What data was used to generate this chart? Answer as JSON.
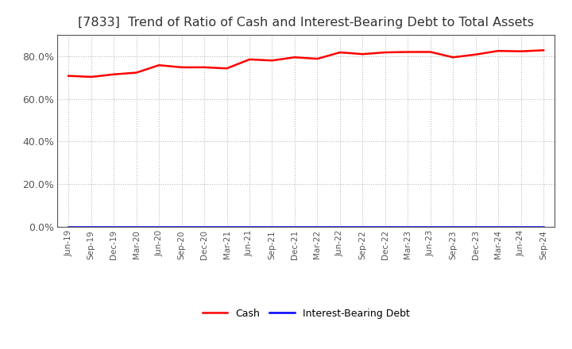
{
  "title": "[7833]  Trend of Ratio of Cash and Interest-Bearing Debt to Total Assets",
  "x_labels": [
    "Jun-19",
    "Sep-19",
    "Dec-19",
    "Mar-20",
    "Jun-20",
    "Sep-20",
    "Dec-20",
    "Mar-21",
    "Jun-21",
    "Sep-21",
    "Dec-21",
    "Mar-22",
    "Jun-22",
    "Sep-22",
    "Dec-22",
    "Mar-23",
    "Jun-23",
    "Sep-23",
    "Dec-23",
    "Mar-24",
    "Jun-24",
    "Sep-24"
  ],
  "cash_values": [
    70.8,
    70.3,
    71.5,
    72.3,
    75.8,
    74.8,
    74.8,
    74.3,
    78.5,
    78.0,
    79.5,
    78.8,
    81.8,
    81.0,
    81.8,
    82.0,
    82.0,
    79.5,
    80.8,
    82.5,
    82.3,
    82.8
  ],
  "interest_bearing_debt_values": [
    0.0,
    0.0,
    0.0,
    0.0,
    0.0,
    0.0,
    0.0,
    0.0,
    0.0,
    0.0,
    0.0,
    0.0,
    0.0,
    0.0,
    0.0,
    0.0,
    0.0,
    0.0,
    0.0,
    0.0,
    0.0,
    0.0
  ],
  "cash_color": "#FF0000",
  "interest_color": "#0000FF",
  "background_color": "#FFFFFF",
  "grid_color": "#BBBBBB",
  "ylim": [
    0,
    90
  ],
  "yticks": [
    0,
    20,
    40,
    60,
    80
  ],
  "ytick_labels": [
    "0.0%",
    "20.0%",
    "40.0%",
    "60.0%",
    "80.0%"
  ],
  "title_fontsize": 11.5,
  "title_color": "#333333",
  "legend_cash": "Cash",
  "legend_ibd": "Interest-Bearing Debt",
  "tick_color": "#555555"
}
